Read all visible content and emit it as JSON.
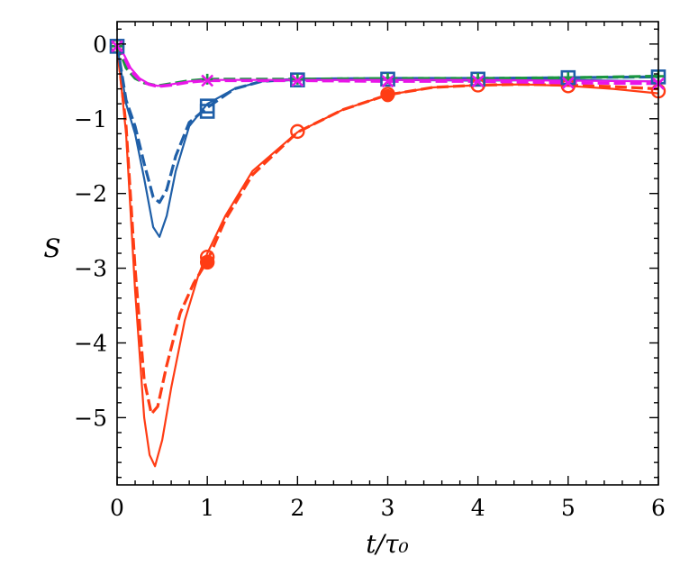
{
  "chart_data": {
    "type": "line",
    "xlabel": "t/τ₀",
    "ylabel": "S",
    "xlim": [
      0,
      6
    ],
    "ylim": [
      -5.9,
      0.3
    ],
    "xticks": [
      0,
      1,
      2,
      3,
      4,
      5,
      6
    ],
    "yticks": [
      0,
      -1,
      -2,
      -3,
      -4,
      -5
    ],
    "xtick_labels": [
      "0",
      "1",
      "2",
      "3",
      "4",
      "5",
      "6"
    ],
    "ytick_labels": [
      "0",
      "−1",
      "−2",
      "−3",
      "−4",
      "−5"
    ],
    "grid": false,
    "series": [
      {
        "color": "#ff3c14",
        "style": "solid",
        "width": 2.2,
        "x": [
          0,
          0.1,
          0.2,
          0.3,
          0.36,
          0.42,
          0.5,
          0.6,
          0.75,
          0.9,
          1.0,
          1.2,
          1.5,
          2.0,
          2.5,
          3.0,
          3.5,
          4.0,
          4.5,
          5.0,
          5.5,
          6.0
        ],
        "y": [
          0,
          -1.2,
          -3.3,
          -5.0,
          -5.5,
          -5.65,
          -5.3,
          -4.6,
          -3.7,
          -3.1,
          -2.8,
          -2.3,
          -1.7,
          -1.18,
          -0.88,
          -0.68,
          -0.58,
          -0.55,
          -0.54,
          -0.56,
          -0.6,
          -0.66
        ]
      },
      {
        "color": "#ff3c14",
        "style": "dashed",
        "width": 3.2,
        "x": [
          0,
          0.1,
          0.2,
          0.3,
          0.38,
          0.45,
          0.55,
          0.7,
          0.85,
          1.0,
          1.2,
          1.5,
          2.0,
          2.5,
          3.0,
          3.5,
          4.0,
          4.5,
          5.0,
          5.5,
          6.0
        ],
        "y": [
          0,
          -1.1,
          -3.0,
          -4.5,
          -4.95,
          -4.85,
          -4.3,
          -3.6,
          -3.2,
          -2.9,
          -2.35,
          -1.75,
          -1.18,
          -0.88,
          -0.68,
          -0.58,
          -0.55,
          -0.54,
          -0.55,
          -0.57,
          -0.6
        ]
      },
      {
        "color": "#1f5fa8",
        "style": "solid",
        "width": 2.2,
        "x": [
          0,
          0.1,
          0.2,
          0.3,
          0.4,
          0.47,
          0.55,
          0.65,
          0.8,
          1.0,
          1.3,
          1.6,
          2.0,
          3.0,
          4.0,
          5.0,
          6.0
        ],
        "y": [
          0,
          -0.8,
          -1.2,
          -1.8,
          -2.45,
          -2.58,
          -2.3,
          -1.7,
          -1.1,
          -0.8,
          -0.6,
          -0.5,
          -0.48,
          -0.48,
          -0.49,
          -0.48,
          -0.5
        ]
      },
      {
        "color": "#1f5fa8",
        "style": "dashed",
        "width": 3.2,
        "x": [
          0,
          0.1,
          0.2,
          0.3,
          0.4,
          0.47,
          0.55,
          0.65,
          0.8,
          1.0,
          1.3,
          1.6,
          2.0,
          3.0,
          4.0,
          5.0,
          6.0
        ],
        "y": [
          0,
          -0.75,
          -1.1,
          -1.6,
          -2.05,
          -2.12,
          -1.95,
          -1.5,
          -1.05,
          -0.85,
          -0.6,
          -0.5,
          -0.47,
          -0.46,
          -0.46,
          -0.45,
          -0.44
        ]
      },
      {
        "color": "#1a9641",
        "style": "dashed",
        "width": 3.2,
        "x": [
          0,
          0.1,
          0.2,
          0.3,
          0.45,
          0.6,
          0.8,
          1.0,
          1.5,
          2.0,
          3.0,
          4.0,
          5.0,
          6.0
        ],
        "y": [
          0,
          -0.32,
          -0.46,
          -0.52,
          -0.56,
          -0.53,
          -0.49,
          -0.47,
          -0.47,
          -0.47,
          -0.46,
          -0.46,
          -0.45,
          -0.43
        ]
      },
      {
        "color": "#e815e8",
        "style": "solid",
        "width": 2.2,
        "x": [
          0,
          0.08,
          0.15,
          0.25,
          0.35,
          0.45,
          0.6,
          0.8,
          1.0,
          1.5,
          2.0,
          3.0,
          4.0,
          5.0,
          6.0
        ],
        "y": [
          0,
          -0.15,
          -0.32,
          -0.46,
          -0.53,
          -0.56,
          -0.54,
          -0.5,
          -0.48,
          -0.48,
          -0.48,
          -0.48,
          -0.48,
          -0.49,
          -0.5
        ]
      },
      {
        "color": "#e815e8",
        "style": "dashed",
        "width": 3.2,
        "x": [
          0,
          0.08,
          0.15,
          0.25,
          0.35,
          0.45,
          0.6,
          0.8,
          1.0,
          1.5,
          2.0,
          3.0,
          4.0,
          5.0,
          6.0
        ],
        "y": [
          0,
          -0.18,
          -0.36,
          -0.48,
          -0.54,
          -0.57,
          -0.55,
          -0.51,
          -0.49,
          -0.49,
          -0.49,
          -0.5,
          -0.5,
          -0.52,
          -0.53
        ]
      }
    ],
    "markers": [
      {
        "shape": "circle",
        "color": "#ff3c14",
        "x": [
          0,
          1,
          1,
          2,
          3,
          4,
          5,
          6
        ],
        "y": [
          -0.03,
          -2.85,
          -2.92,
          -1.17,
          -0.67,
          -0.55,
          -0.56,
          -0.63
        ]
      },
      {
        "shape": "circle-filled",
        "color": "#ff3c14",
        "x": [
          1,
          3
        ],
        "y": [
          -2.92,
          -0.69
        ]
      },
      {
        "shape": "square",
        "color": "#1f5fa8",
        "x": [
          0,
          1,
          1,
          2,
          3,
          4,
          5,
          6
        ],
        "y": [
          -0.03,
          -0.83,
          -0.9,
          -0.48,
          -0.47,
          -0.47,
          -0.45,
          -0.44
        ]
      },
      {
        "shape": "plus",
        "color": "#1a9641",
        "x": [
          0,
          1,
          2,
          3,
          4,
          5,
          6
        ],
        "y": [
          -0.03,
          -0.47,
          -0.47,
          -0.46,
          -0.46,
          -0.45,
          -0.43
        ]
      },
      {
        "shape": "x",
        "color": "#e815e8",
        "x": [
          0,
          1,
          2,
          3,
          4,
          5,
          6
        ],
        "y": [
          -0.03,
          -0.49,
          -0.49,
          -0.5,
          -0.5,
          -0.52,
          -0.53
        ]
      }
    ]
  }
}
